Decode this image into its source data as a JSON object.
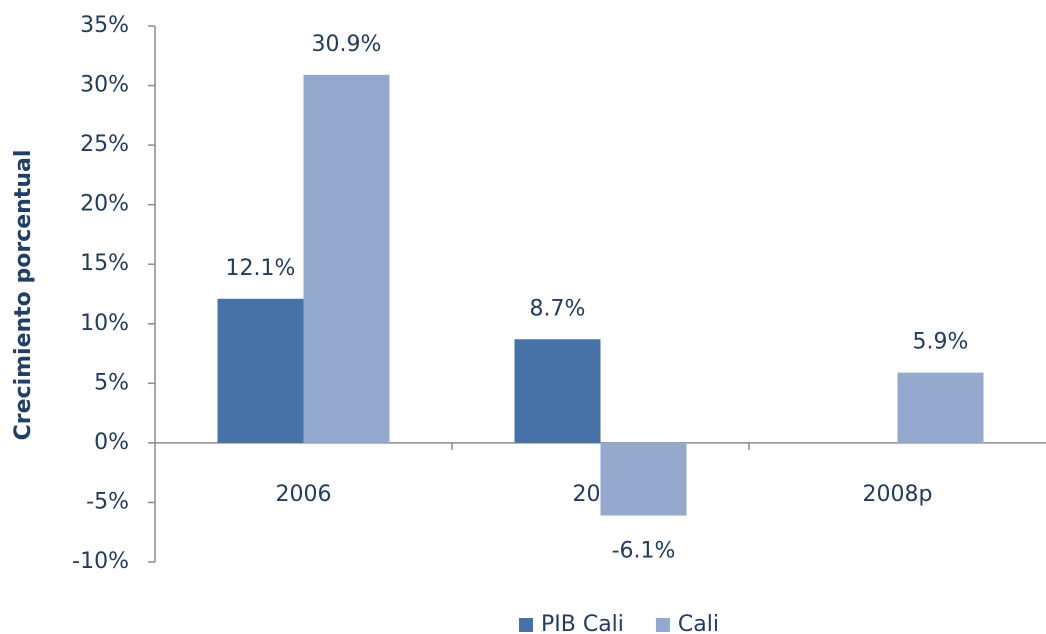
{
  "chart_data": {
    "type": "bar",
    "y_axis_label": "Crecimiento porcentual",
    "categories": [
      "2006",
      "2007",
      "2008p"
    ],
    "series": [
      {
        "name": "PIB Cali",
        "color": "#4672a7",
        "values": [
          12.1,
          8.7,
          null
        ],
        "value_labels": [
          "12.1%",
          "8.7%",
          null
        ]
      },
      {
        "name": "Cali",
        "color": "#95a9cf",
        "values": [
          30.9,
          -6.1,
          5.9
        ],
        "value_labels": [
          "30.9%",
          "-6.1%",
          "5.9%"
        ]
      }
    ],
    "ylim": [
      -10,
      35
    ],
    "yticks": [
      {
        "value": -10,
        "label": "-10%"
      },
      {
        "value": -5,
        "label": "-5%"
      },
      {
        "value": 0,
        "label": "0%"
      },
      {
        "value": 5,
        "label": "5%"
      },
      {
        "value": 10,
        "label": "10%"
      },
      {
        "value": 15,
        "label": "15%"
      },
      {
        "value": 20,
        "label": "20%"
      },
      {
        "value": 25,
        "label": "25%"
      },
      {
        "value": 30,
        "label": "30%"
      },
      {
        "value": 35,
        "label": "35%"
      }
    ],
    "grid": false,
    "legend": "bottom"
  }
}
